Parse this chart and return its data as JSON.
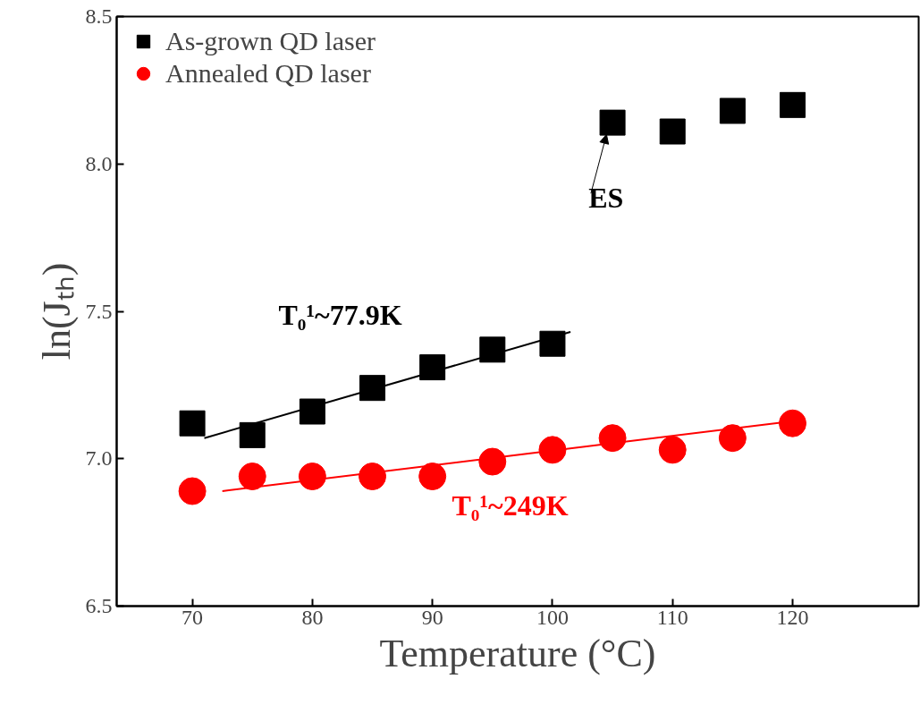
{
  "chart_data": {
    "type": "scatter",
    "xlabel": "Temperature (°C)",
    "ylabel": "ln(Jₜₕ)",
    "xlim": [
      63.7,
      130.5
    ],
    "ylim": [
      6.5,
      8.5
    ],
    "xticks": [
      70,
      80,
      90,
      100,
      110,
      120
    ],
    "yticks": [
      6.5,
      {
        "value": 7,
        "label": "7.0"
      },
      7.5,
      {
        "value": 8,
        "label": "8.0"
      },
      8.5
    ],
    "grid": false,
    "legend": "top left",
    "series": [
      {
        "name": "As-grown QD laser",
        "color": "#000000",
        "marker": "square",
        "x": [
          70,
          75,
          80,
          85,
          90,
          95,
          100,
          105,
          110,
          115,
          120
        ],
        "values": [
          7.12,
          7.08,
          7.16,
          7.24,
          7.31,
          7.37,
          7.39,
          8.14,
          8.11,
          8.18,
          8.2
        ]
      },
      {
        "name": "Annealed QD laser",
        "color": "#ff0000",
        "marker": "circle",
        "x": [
          70,
          75,
          80,
          85,
          90,
          95,
          100,
          105,
          110,
          115,
          120
        ],
        "values": [
          6.89,
          6.94,
          6.94,
          6.94,
          6.94,
          6.99,
          7.03,
          7.07,
          7.03,
          7.07,
          7.12
        ]
      },
      {
        "type": "line",
        "color": "#000000",
        "x": [
          71,
          101.5
        ],
        "values": [
          7.07,
          7.43
        ]
      },
      {
        "type": "line",
        "color": "#ff0000",
        "x": [
          72.5,
          120.5
        ],
        "values": [
          6.89,
          7.13
        ]
      }
    ],
    "annotations": [
      "T₀¹~77.9K",
      "T₀¹~249K",
      {
        "text": "ES",
        "x": 104.5,
        "y": 8.1
      }
    ]
  }
}
